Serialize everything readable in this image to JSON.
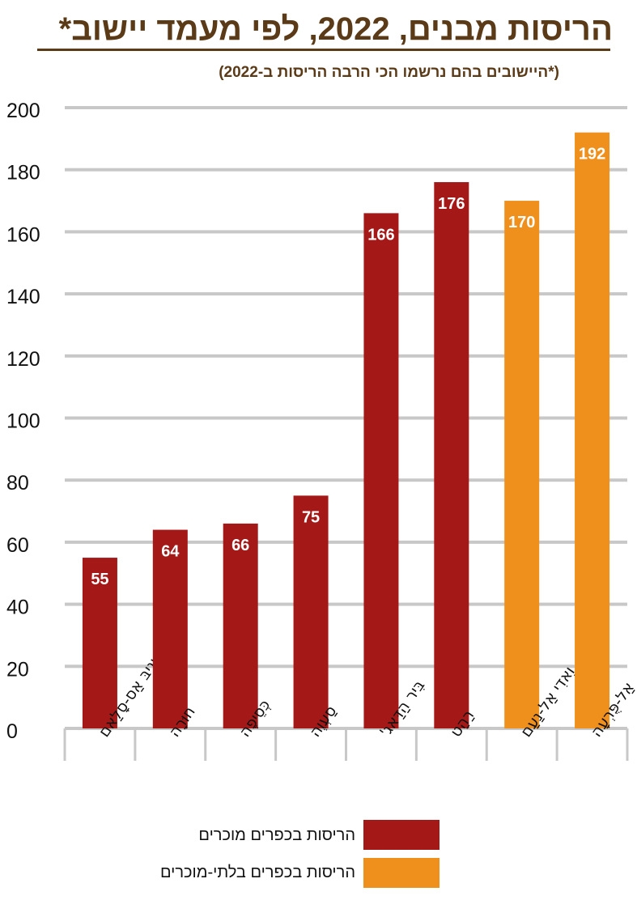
{
  "title": "הריסות מבנים, 2022, לפי מעמד יישוב*",
  "subtitle": "(*היישובים בהם נרשמו הכי הרבה הריסות ב-2022)",
  "colors": {
    "recognized": "#a51818",
    "unrecognized": "#f0901c",
    "title": "#5a3a17",
    "grid": "#c8c8c8"
  },
  "chart_data": {
    "type": "bar",
    "categories": [
      "שְׁגִיבּ אַס-סָלַאם",
      "חוּרָה",
      "כְּסֵיפֶה",
      "סַעְוֶה",
      "בִּיר הַדַּאג'",
      "רַהַט",
      "וַאדִי אַל-נַעַם",
      "אַל-פֻּרְעָה"
    ],
    "values": [
      55,
      64,
      66,
      75,
      166,
      176,
      170,
      192
    ],
    "groups": [
      "recognized",
      "recognized",
      "recognized",
      "recognized",
      "recognized",
      "recognized",
      "unrecognized",
      "unrecognized"
    ],
    "ylim": [
      0,
      200
    ],
    "yticks": [
      0,
      20,
      40,
      60,
      80,
      100,
      120,
      140,
      160,
      180,
      200
    ],
    "grid": true,
    "legend_position": "bottom"
  },
  "legend": [
    {
      "label": "הריסות בכפרים מוכרים",
      "color": "#a51818"
    },
    {
      "label": "הריסות בכפרים בלתי-מוכרים",
      "color": "#f0901c"
    }
  ]
}
